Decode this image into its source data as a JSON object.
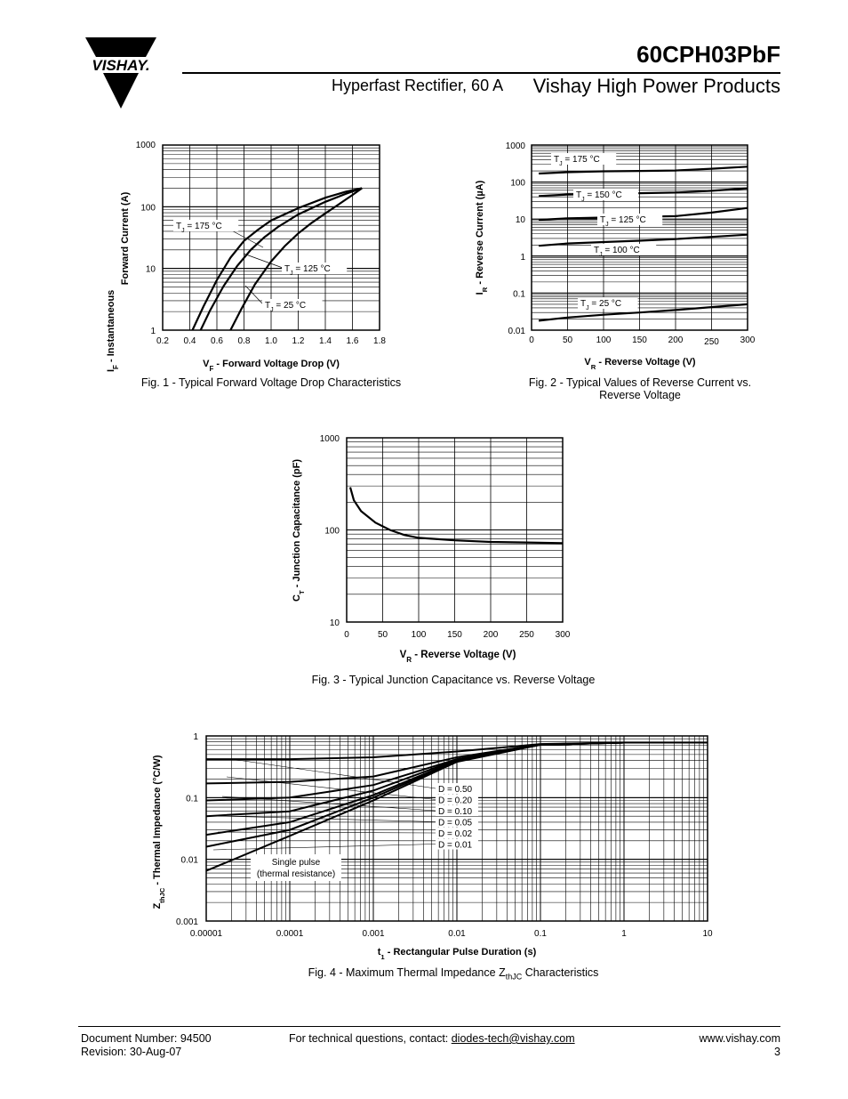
{
  "header": {
    "brand": "VISHAY.",
    "part_number": "60CPH03PbF",
    "subtitle": "Hyperfast Rectifier, 60 A",
    "company": "Vishay High Power Products"
  },
  "fig1": {
    "caption": "Fig. 1 - Typical Forward Voltage Drop Characteristics",
    "ylabel_line1": "I",
    "ylabel_sub": "F",
    "ylabel_rest": " - Instantaneous",
    "ylabel_line2": "Forward Current (A)",
    "xlabel_main": "V",
    "xlabel_sub": "F",
    "xlabel_rest": " - Forward Voltage Drop (V)",
    "y_ticks": [
      "1000",
      "100",
      "10",
      "1"
    ],
    "x_ticks": [
      "0.2",
      "0.4",
      "0.6",
      "0.8",
      "1.0",
      "1.2",
      "1.4",
      "1.6",
      "1.8"
    ],
    "labels": [
      "T_J = 175 °C",
      "T_J = 125 °C",
      "T_J = 25 °C"
    ]
  },
  "fig2": {
    "caption_line1": "Fig. 2 - Typical Values of Reverse Current vs.",
    "caption_line2": "Reverse Voltage",
    "ylabel": "I_R - Reverse Current (µA)",
    "xlabel": "V_R - Reverse Voltage (V)",
    "y_ticks": [
      "1000",
      "100",
      "10",
      "1",
      "0.1",
      "0.01"
    ],
    "x_ticks": [
      "0",
      "50",
      "100",
      "150",
      "200",
      "250",
      "300"
    ],
    "labels": [
      "T_J = 175 °C",
      "T_J = 150 °C",
      "T_J = 125 °C",
      "T_J = 100 °C",
      "T_J = 25 °C"
    ]
  },
  "fig3": {
    "caption": "Fig. 3 - Typical Junction Capacitance vs. Reverse Voltage",
    "ylabel": "C_T - Junction Capacitance (pF)",
    "xlabel": "V_R - Reverse Voltage (V)",
    "y_ticks": [
      "1000",
      "100",
      "10"
    ],
    "x_ticks": [
      "0",
      "50",
      "100",
      "150",
      "200",
      "250",
      "300"
    ]
  },
  "fig4": {
    "caption": "Fig. 4 - Maximum Thermal Impedance Z_thJC Characteristics",
    "ylabel": "Z_thJC - Thermal Impedance (°C/W)",
    "xlabel": "t_1 - Rectangular Pulse Duration (s)",
    "y_ticks": [
      "1",
      "0.1",
      "0.01",
      "0.001"
    ],
    "x_ticks": [
      "0.00001",
      "0.0001",
      "0.001",
      "0.01",
      "0.1",
      "1",
      "10"
    ],
    "labels": [
      "D = 0.50",
      "D = 0.20",
      "D = 0.10",
      "D = 0.05",
      "D = 0.02",
      "D = 0.01"
    ],
    "single_pulse_1": "Single pulse",
    "single_pulse_2": "(thermal resistance)"
  },
  "chart_data": [
    {
      "type": "line",
      "title": "Fig. 1 - Typical Forward Voltage Drop Characteristics",
      "xlabel": "V_F - Forward Voltage Drop (V)",
      "ylabel": "I_F - Instantaneous Forward Current (A)",
      "xlim": [
        0.2,
        1.8
      ],
      "ylim": [
        1,
        1000
      ],
      "yscale": "log",
      "grid": true,
      "series": [
        {
          "name": "T_J = 175 °C",
          "x": [
            0.42,
            0.5,
            0.6,
            0.7,
            0.8,
            0.9,
            1.0,
            1.2,
            1.4,
            1.55,
            1.67
          ],
          "y": [
            1,
            2.4,
            6.5,
            15,
            28,
            42,
            60,
            95,
            140,
            175,
            200
          ]
        },
        {
          "name": "T_J = 125 °C",
          "x": [
            0.48,
            0.55,
            0.65,
            0.75,
            0.85,
            0.95,
            1.05,
            1.2,
            1.4,
            1.55,
            1.67
          ],
          "y": [
            1,
            2.1,
            5.2,
            11,
            20,
            32,
            47,
            75,
            120,
            162,
            200
          ]
        },
        {
          "name": "T_J = 25 °C",
          "x": [
            0.7,
            0.78,
            0.88,
            1.0,
            1.1,
            1.2,
            1.3,
            1.4,
            1.5,
            1.6,
            1.67
          ],
          "y": [
            1,
            2.2,
            5.5,
            13,
            23,
            37,
            55,
            78,
            110,
            155,
            200
          ]
        }
      ]
    },
    {
      "type": "line",
      "title": "Fig. 2 - Typical Values of Reverse Current vs. Reverse Voltage",
      "xlabel": "V_R - Reverse Voltage (V)",
      "ylabel": "I_R - Reverse Current (µA)",
      "xlim": [
        0,
        300
      ],
      "ylim": [
        0.01,
        1000
      ],
      "yscale": "log",
      "grid": true,
      "series": [
        {
          "name": "T_J = 175 °C",
          "x": [
            10,
            50,
            100,
            150,
            200,
            250,
            300
          ],
          "y": [
            170,
            185,
            195,
            200,
            205,
            230,
            260
          ]
        },
        {
          "name": "T_J = 150 °C",
          "x": [
            10,
            50,
            100,
            150,
            200,
            250,
            300
          ],
          "y": [
            42,
            46,
            48,
            50,
            52,
            58,
            68
          ]
        },
        {
          "name": "T_J = 125 °C",
          "x": [
            10,
            50,
            100,
            150,
            200,
            250,
            300
          ],
          "y": [
            9.5,
            10.5,
            11,
            11.5,
            12,
            15,
            20
          ]
        },
        {
          "name": "T_J = 100 °C",
          "x": [
            10,
            50,
            100,
            150,
            200,
            250,
            300
          ],
          "y": [
            1.9,
            2.2,
            2.4,
            2.6,
            2.9,
            3.3,
            3.8
          ]
        },
        {
          "name": "T_J = 25 °C",
          "x": [
            10,
            50,
            100,
            150,
            200,
            250,
            300
          ],
          "y": [
            0.018,
            0.022,
            0.026,
            0.03,
            0.035,
            0.042,
            0.05
          ]
        }
      ]
    },
    {
      "type": "line",
      "title": "Fig. 3 - Typical Junction Capacitance vs. Reverse Voltage",
      "xlabel": "V_R - Reverse Voltage (V)",
      "ylabel": "C_T - Junction Capacitance (pF)",
      "xlim": [
        0,
        300
      ],
      "ylim": [
        10,
        1000
      ],
      "yscale": "log",
      "grid": true,
      "series": [
        {
          "name": "",
          "x": [
            5,
            10,
            20,
            40,
            60,
            80,
            100,
            150,
            200,
            250,
            300
          ],
          "y": [
            290,
            210,
            160,
            120,
            100,
            88,
            82,
            77,
            74,
            73,
            72
          ]
        }
      ]
    },
    {
      "type": "line",
      "title": "Fig. 4 - Maximum Thermal Impedance Z_thJC Characteristics",
      "xlabel": "t_1 - Rectangular Pulse Duration (s)",
      "ylabel": "Z_thJC - Thermal Impedance (°C/W)",
      "xlim": [
        1e-05,
        10
      ],
      "ylim": [
        0.001,
        1
      ],
      "xscale": "log",
      "yscale": "log",
      "grid": true,
      "series": [
        {
          "name": "D = 0.50",
          "x": [
            1e-05,
            0.0001,
            0.001,
            0.01,
            0.1,
            1,
            10
          ],
          "y": [
            0.42,
            0.42,
            0.45,
            0.56,
            0.74,
            0.78,
            0.78
          ]
        },
        {
          "name": "D = 0.20",
          "x": [
            1e-05,
            0.0001,
            0.001,
            0.01,
            0.1,
            1,
            10
          ],
          "y": [
            0.17,
            0.18,
            0.22,
            0.45,
            0.73,
            0.78,
            0.78
          ]
        },
        {
          "name": "D = 0.10",
          "x": [
            1e-05,
            0.0001,
            0.001,
            0.01,
            0.1,
            1,
            10
          ],
          "y": [
            0.09,
            0.1,
            0.16,
            0.42,
            0.73,
            0.78,
            0.78
          ]
        },
        {
          "name": "D = 0.05",
          "x": [
            1e-05,
            0.0001,
            0.001,
            0.01,
            0.1,
            1,
            10
          ],
          "y": [
            0.05,
            0.06,
            0.13,
            0.41,
            0.72,
            0.78,
            0.78
          ]
        },
        {
          "name": "D = 0.02",
          "x": [
            1e-05,
            0.0001,
            0.001,
            0.01,
            0.1,
            1,
            10
          ],
          "y": [
            0.025,
            0.04,
            0.11,
            0.4,
            0.72,
            0.78,
            0.78
          ]
        },
        {
          "name": "D = 0.01",
          "x": [
            1e-05,
            0.0001,
            0.001,
            0.01,
            0.1,
            1,
            10
          ],
          "y": [
            0.016,
            0.03,
            0.1,
            0.39,
            0.72,
            0.78,
            0.78
          ]
        },
        {
          "name": "Single pulse (thermal resistance)",
          "x": [
            1e-05,
            0.0001,
            0.001,
            0.01,
            0.1,
            1,
            10
          ],
          "y": [
            0.0065,
            0.024,
            0.09,
            0.38,
            0.72,
            0.78,
            0.78
          ]
        }
      ]
    }
  ],
  "footer": {
    "doc_number": "Document Number: 94500",
    "revision": "Revision: 30-Aug-07",
    "contact_prefix": "For technical questions, contact: ",
    "contact_email": "diodes-tech@vishay.com",
    "website": "www.vishay.com",
    "page": "3"
  }
}
